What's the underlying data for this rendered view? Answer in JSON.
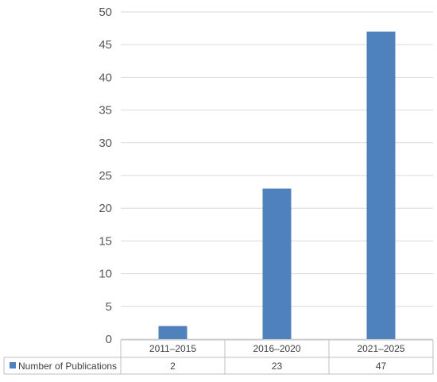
{
  "chart_data": {
    "type": "bar",
    "categories": [
      "2011–2015",
      "2016–2020",
      "2021–2025"
    ],
    "series": [
      {
        "name": "Number of Publications",
        "values": [
          2,
          23,
          47
        ],
        "color": "#4f81bd"
      }
    ],
    "y_ticks": [
      "0",
      "5",
      "10",
      "15",
      "20",
      "25",
      "30",
      "35",
      "40",
      "45",
      "50"
    ],
    "ylim": [
      0,
      50
    ],
    "grid": true,
    "data_table": true,
    "legend": "data-table-row",
    "title": "",
    "xlabel": "",
    "ylabel": ""
  }
}
